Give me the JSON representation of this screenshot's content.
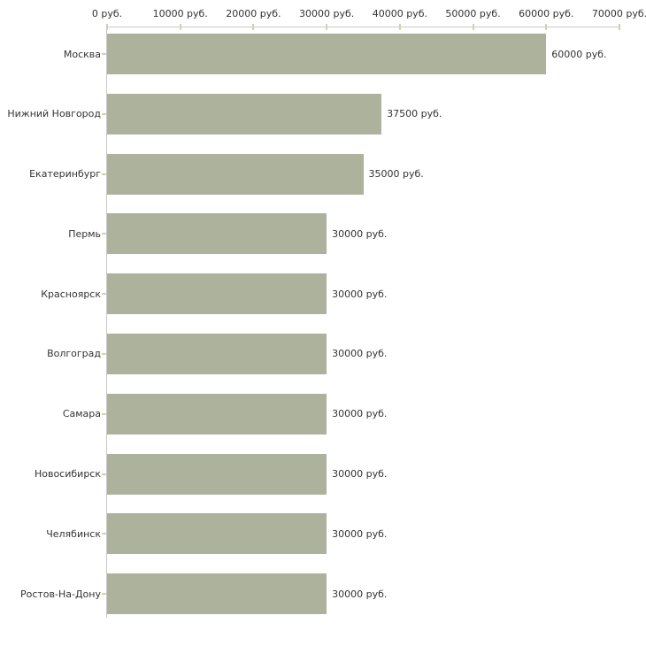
{
  "chart_data": {
    "type": "bar",
    "orientation": "horizontal",
    "title": "",
    "xlabel": "",
    "ylabel": "",
    "categories": [
      "Москва",
      "Нижний Новгород",
      "Екатеринбург",
      "Пермь",
      "Красноярск",
      "Волгоград",
      "Самара",
      "Новосибирск",
      "Челябинск",
      "Ростов-На-Дону"
    ],
    "values": [
      60000,
      37500,
      35000,
      30000,
      30000,
      30000,
      30000,
      30000,
      30000,
      30000
    ],
    "value_labels": [
      "60000 руб.",
      "37500 руб.",
      "35000 руб.",
      "30000 руб.",
      "30000 руб.",
      "30000 руб.",
      "30000 руб.",
      "30000 руб.",
      "30000 руб.",
      "30000 руб."
    ],
    "x_ticks": [
      0,
      10000,
      20000,
      30000,
      40000,
      50000,
      60000,
      70000
    ],
    "x_tick_labels": [
      "0 руб.",
      "10000 руб.",
      "20000 руб.",
      "30000 руб.",
      "40000 руб.",
      "50000 руб.",
      "60000 руб.",
      "70000 руб."
    ],
    "xlim": [
      0,
      70000
    ],
    "grid": false,
    "legend": false,
    "colors": {
      "bar": "#acb29b",
      "axis_line": "#c9c9c9",
      "tick_mark": "#d3d1ab",
      "text": "#333333",
      "background": "#ffffff"
    }
  }
}
